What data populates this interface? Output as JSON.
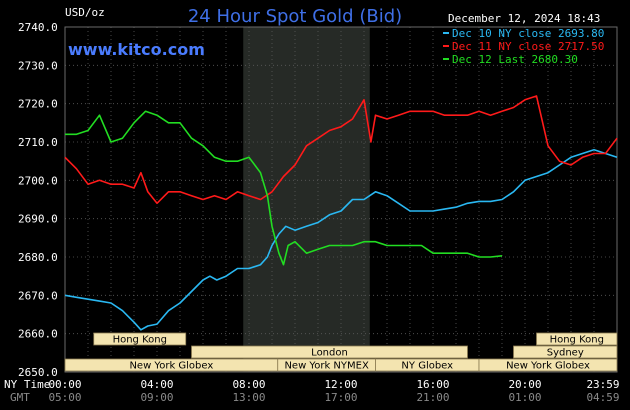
{
  "chart_data": {
    "type": "line",
    "title": "24 Hour Spot Gold (Bid)",
    "brand": "www.kitco.com",
    "date_text": "December 12, 2024 18:43",
    "ylabel": "USD/oz",
    "ylim": [
      2650,
      2740
    ],
    "yticks": [
      "2740.0",
      "2730.0",
      "2720.0",
      "2710.0",
      "2700.0",
      "2690.0",
      "2680.0",
      "2670.0",
      "2660.0",
      "2650.0"
    ],
    "xlim_hours": [
      0,
      24
    ],
    "x_row_ny_label": "NY Time",
    "x_row_gmt_label": "GMT",
    "xticks_ny": [
      "00:00",
      "04:00",
      "08:00",
      "12:00",
      "16:00",
      "20:00",
      "23:59"
    ],
    "xticks_gmt": [
      "05:00",
      "09:00",
      "13:00",
      "17:00",
      "21:00",
      "01:00",
      "04:59"
    ],
    "grid": true,
    "shaded_session_hours": [
      7.75,
      13.25
    ],
    "legend_position": "top-right",
    "series": [
      {
        "name": "Dec 10 NY close 2693.80",
        "color": "#2ab8f2",
        "x": [
          0,
          0.5,
          1,
          1.5,
          2,
          2.5,
          3,
          3.3,
          3.6,
          4,
          4.5,
          5,
          5.5,
          6,
          6.3,
          6.6,
          7,
          7.5,
          8,
          8.5,
          8.8,
          9,
          9.3,
          9.6,
          10,
          10.5,
          11,
          11.5,
          12,
          12.5,
          13,
          13.5,
          14,
          14.5,
          15,
          15.5,
          16,
          16.5,
          17,
          17.5,
          18,
          18.5,
          19,
          19.5,
          20,
          20.5,
          21,
          21.5,
          22,
          22.5,
          23,
          23.5,
          24
        ],
        "values": [
          2670,
          2669.5,
          2669,
          2668.5,
          2668,
          2666,
          2663,
          2661,
          2662,
          2662.5,
          2666,
          2668,
          2671,
          2674,
          2675,
          2674,
          2675,
          2677,
          2677,
          2678,
          2680,
          2683,
          2686,
          2688,
          2687,
          2688,
          2689,
          2691,
          2692,
          2695,
          2695,
          2697,
          2696,
          2694,
          2692,
          2692,
          2692,
          2692.5,
          2693,
          2694,
          2694.5,
          2694.5,
          2695,
          2697,
          2700,
          2701,
          2702,
          2704,
          2706,
          2707,
          2708,
          2707,
          2706
        ]
      },
      {
        "name": "Dec 11 NY close 2717.50",
        "color": "#ff1a1a",
        "x": [
          0,
          0.5,
          1,
          1.5,
          2,
          2.5,
          3,
          3.3,
          3.6,
          4,
          4.5,
          5,
          5.5,
          6,
          6.5,
          7,
          7.5,
          8,
          8.5,
          9,
          9.5,
          10,
          10.5,
          11,
          11.5,
          12,
          12.5,
          13,
          13.3,
          13.5,
          14,
          14.5,
          15,
          15.5,
          16,
          16.5,
          17,
          17.5,
          18,
          18.5,
          19,
          19.5,
          20,
          20.5,
          21,
          21.5,
          22,
          22.5,
          23,
          23.5,
          24
        ],
        "values": [
          2706,
          2703,
          2699,
          2700,
          2699,
          2699,
          2698,
          2702,
          2697,
          2694,
          2697,
          2697,
          2696,
          2695,
          2696,
          2695,
          2697,
          2696,
          2695,
          2697,
          2701,
          2704,
          2709,
          2711,
          2713,
          2714,
          2716,
          2721,
          2710,
          2717,
          2716,
          2717,
          2718,
          2718,
          2718,
          2717,
          2717,
          2717,
          2718,
          2717,
          2718,
          2719,
          2721,
          2722,
          2709,
          2705,
          2704,
          2706,
          2707,
          2707,
          2711
        ]
      },
      {
        "name": "Dec 12 Last 2680.30",
        "color": "#22dd22",
        "x": [
          0,
          0.5,
          1,
          1.5,
          2,
          2.5,
          3,
          3.5,
          4,
          4.5,
          5,
          5.5,
          6,
          6.5,
          7,
          7.5,
          8,
          8.5,
          8.8,
          9,
          9.3,
          9.5,
          9.7,
          10,
          10.5,
          11,
          11.5,
          12,
          12.5,
          13,
          13.5,
          14,
          14.5,
          15,
          15.5,
          16,
          16.5,
          17,
          17.5,
          18,
          18.5,
          19
        ],
        "values": [
          2712,
          2712,
          2713,
          2717,
          2710,
          2711,
          2715,
          2718,
          2717,
          2715,
          2715,
          2711,
          2709,
          2706,
          2705,
          2705,
          2706,
          2702,
          2696,
          2688,
          2681,
          2678,
          2683,
          2684,
          2681,
          2682,
          2683,
          2683,
          2683,
          2684,
          2684,
          2683,
          2683,
          2683,
          2683,
          2681,
          2681,
          2681,
          2681,
          2680,
          2680,
          2680.3
        ]
      }
    ],
    "market_sessions": [
      {
        "name": "Hong Kong",
        "start": 1.25,
        "end": 5.25,
        "row": 0
      },
      {
        "name": "Hong Kong",
        "start": 20.5,
        "end": 24,
        "row": 0
      },
      {
        "name": "London",
        "start": 5.5,
        "end": 17.5,
        "row": 1
      },
      {
        "name": "Sydney",
        "start": 19.5,
        "end": 24,
        "row": 1
      },
      {
        "name": "New York Globex",
        "start": 0,
        "end": 9.25,
        "row": 2
      },
      {
        "name": "New York NYMEX",
        "start": 9.25,
        "end": 13.5,
        "row": 2
      },
      {
        "name": "NY Globex",
        "start": 13.5,
        "end": 18,
        "row": 2
      },
      {
        "name": "New York Globex",
        "start": 18,
        "end": 24,
        "row": 2
      }
    ]
  }
}
